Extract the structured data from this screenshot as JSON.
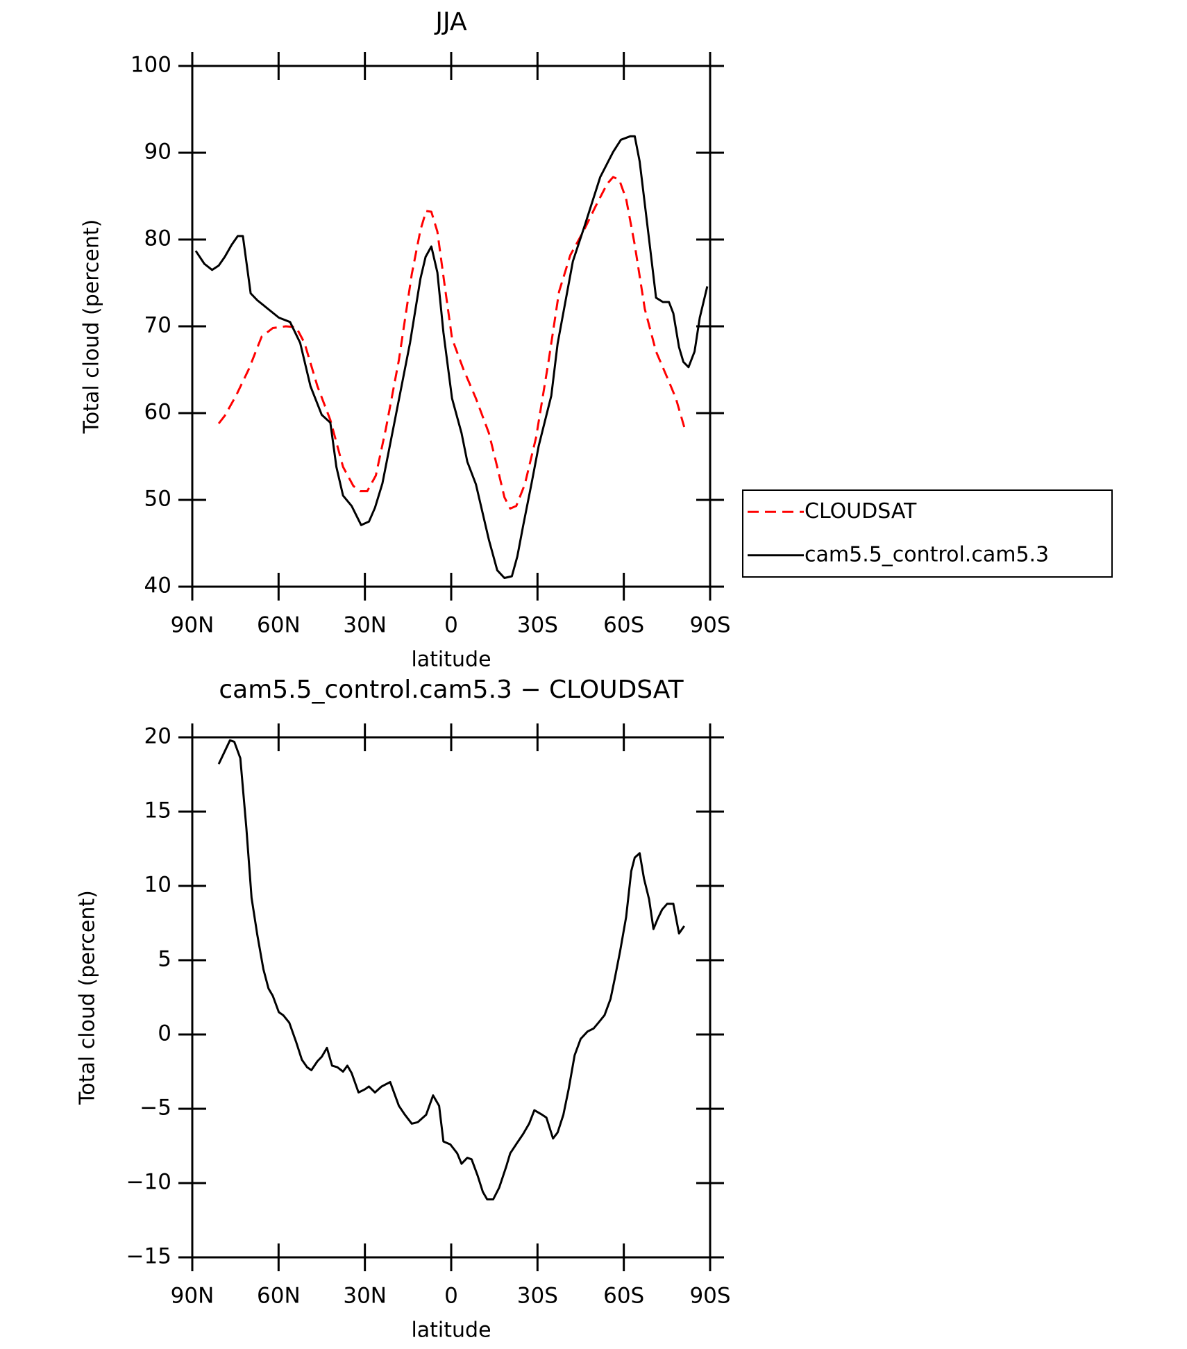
{
  "chart_data": [
    {
      "type": "line",
      "title": "JJA",
      "ylabel": "Total cloud (percent)",
      "xlabel": "latitude",
      "xlim": [
        90,
        -90
      ],
      "xticks": [
        {
          "value": 90,
          "label": "90N"
        },
        {
          "value": 60,
          "label": "60N"
        },
        {
          "value": 30,
          "label": "30N"
        },
        0,
        {
          "value": -30,
          "label": "30S"
        },
        {
          "value": -60,
          "label": "60S"
        },
        {
          "value": -90,
          "label": "90S"
        }
      ],
      "ylim": [
        40,
        100
      ],
      "yticks": [
        40,
        50,
        60,
        70,
        80,
        90,
        100
      ],
      "legend": "right",
      "series": [
        {
          "name": "CLOUDSAT",
          "color": "#ff0000",
          "dashed": true,
          "x": [
            80.8,
            78.7,
            74.8,
            70.3,
            65.9,
            62,
            57.5,
            53.9,
            51,
            46.5,
            42,
            37.6,
            34,
            31.6,
            29.2,
            26.2,
            22.7,
            18.2,
            13.7,
            10.7,
            8.7,
            6.9,
            4.8,
            2.4,
            -0.3,
            -4.2,
            -8.6,
            -13.1,
            -16,
            -18.5,
            -20.5,
            -22.6,
            -25.6,
            -29.5,
            -33.9,
            -37.5,
            -41.4,
            -45.9,
            -50.3,
            -54.2,
            -56.3,
            -58.4,
            -60.8,
            -63.8,
            -67.3,
            -71.2,
            -75.1,
            -78.1,
            -81
          ],
          "values": [
            58.8,
            59.7,
            62,
            65.1,
            68.8,
            69.8,
            70,
            69.9,
            68.1,
            63.1,
            59.2,
            53.8,
            51.6,
            51,
            51,
            52.8,
            58.2,
            66.1,
            76,
            81.1,
            83.3,
            83.2,
            80.9,
            75,
            68.6,
            65.1,
            61.7,
            57.7,
            53.8,
            50.3,
            49,
            49.3,
            51.8,
            57.2,
            66.1,
            74,
            78.2,
            80.9,
            83.9,
            86.4,
            87.2,
            86.9,
            84.7,
            79.4,
            72,
            67.1,
            64.1,
            61.7,
            58.4
          ]
        },
        {
          "name": "cam5.5_control.cam5.3",
          "color": "#000000",
          "dashed": false,
          "x": [
            88.8,
            85.8,
            83.1,
            80.8,
            78.7,
            76.3,
            74.2,
            72.4,
            69.7,
            67.4,
            62.9,
            59.9,
            56,
            52.5,
            48.9,
            45,
            42,
            39.9,
            37.6,
            34.6,
            31.3,
            28.6,
            26.5,
            23.9,
            19.7,
            14.3,
            10.7,
            8.9,
            6.9,
            4.8,
            2.7,
            -0.3,
            -3.6,
            -5.6,
            -8.6,
            -13.1,
            -16,
            -18.5,
            -21.1,
            -23,
            -25,
            -28,
            -30.4,
            -34.8,
            -37,
            -42.3,
            -46.5,
            -51.8,
            -56.3,
            -59,
            -62.3,
            -63.8,
            -65.5,
            -68.8,
            -71.2,
            -73.6,
            -75.7,
            -77.2,
            -79.2,
            -80.7,
            -82.5,
            -84.6,
            -86.4,
            -89
          ],
          "values": [
            78.7,
            77.2,
            76.5,
            77,
            78,
            79.4,
            80.4,
            80.4,
            73.8,
            73,
            71.8,
            71,
            70.5,
            68.1,
            63.1,
            59.8,
            58.9,
            53.8,
            50.5,
            49.3,
            47.1,
            47.5,
            49.1,
            51.9,
            59,
            68.1,
            75.5,
            78,
            79.2,
            76.2,
            69.3,
            61.7,
            57.7,
            54.4,
            51.8,
            45.4,
            41.9,
            41,
            41.2,
            43.5,
            47,
            52,
            56.2,
            62,
            68,
            77.5,
            81.7,
            87.2,
            90.1,
            91.5,
            91.9,
            91.9,
            89,
            80,
            73.3,
            72.8,
            72.8,
            71.5,
            67.6,
            65.9,
            65.3,
            67.1,
            71,
            74.6
          ]
        }
      ]
    },
    {
      "type": "line",
      "title": "cam5.5_control.cam5.3 − CLOUDSAT",
      "ylabel": "Total cloud (percent)",
      "xlabel": "latitude",
      "xlim": [
        90,
        -90
      ],
      "xticks": [
        {
          "value": 90,
          "label": "90N"
        },
        {
          "value": 60,
          "label": "60N"
        },
        {
          "value": 30,
          "label": "30N"
        },
        0,
        {
          "value": -30,
          "label": "30S"
        },
        {
          "value": -60,
          "label": "60S"
        },
        {
          "value": -90,
          "label": "90S"
        }
      ],
      "ylim": [
        -15,
        20
      ],
      "yticks": [
        {
          "value": -15,
          "label": "−15"
        },
        {
          "value": -10,
          "label": "−10"
        },
        {
          "value": -5,
          "label": "−5"
        },
        0,
        5,
        10,
        15,
        20
      ],
      "series": [
        {
          "color": "#000000",
          "dashed": false,
          "x": [
            80.8,
            76.9,
            75.4,
            73.3,
            71.2,
            69.4,
            67.4,
            65.3,
            63.5,
            62,
            59.9,
            58.4,
            56.3,
            53.9,
            51.9,
            50.1,
            48.6,
            46.5,
            45,
            43.2,
            41.4,
            39.6,
            37.6,
            36.1,
            34.6,
            32.2,
            30.1,
            28.6,
            26.5,
            24.2,
            21.2,
            18.2,
            16.1,
            13.7,
            11.6,
            8.7,
            6.3,
            4.2,
            2.7,
            0.3,
            -2.1,
            -3.6,
            -5.6,
            -7.1,
            -9.2,
            -11,
            -12.5,
            -14.6,
            -16.7,
            -19.1,
            -20.5,
            -22.9,
            -25,
            -27.1,
            -28.9,
            -31.6,
            -33.1,
            -35.4,
            -37,
            -39,
            -40.8,
            -42.9,
            -45,
            -47.4,
            -49.5,
            -51.2,
            -53.3,
            -55.4,
            -56.9,
            -58.7,
            -60.8,
            -62.6,
            -63.8,
            -65.5,
            -67,
            -68.8,
            -70.3,
            -71.8,
            -73.3,
            -75.1,
            -77.2,
            -79.2,
            -81
          ],
          "values": [
            18.2,
            19.8,
            19.7,
            18.6,
            13.9,
            9.2,
            6.7,
            4.4,
            3.1,
            2.6,
            1.5,
            1.3,
            0.8,
            -0.5,
            -1.7,
            -2.2,
            -2.4,
            -1.8,
            -1.5,
            -0.9,
            -2.1,
            -2.2,
            -2.5,
            -2.1,
            -2.6,
            -3.9,
            -3.7,
            -3.5,
            -3.9,
            -3.5,
            -3.2,
            -4.8,
            -5.4,
            -6,
            -5.9,
            -5.4,
            -4.1,
            -4.8,
            -7.2,
            -7.4,
            -8,
            -8.7,
            -8.3,
            -8.4,
            -9.5,
            -10.6,
            -11.1,
            -11.1,
            -10.3,
            -8.9,
            -8,
            -7.3,
            -6.7,
            -6,
            -5.1,
            -5.4,
            -5.6,
            -7,
            -6.6,
            -5.4,
            -3.7,
            -1.4,
            -0.3,
            0.2,
            0.4,
            0.8,
            1.3,
            2.4,
            3.8,
            5.6,
            7.9,
            11,
            11.9,
            12.2,
            10.5,
            9.1,
            7.1,
            7.8,
            8.4,
            8.8,
            8.8,
            6.8,
            7.3
          ]
        }
      ]
    }
  ]
}
